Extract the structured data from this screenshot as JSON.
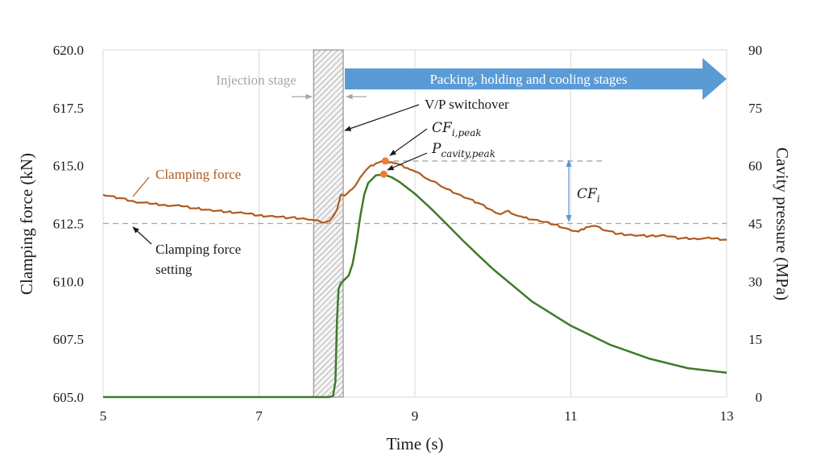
{
  "chart_data": {
    "type": "line",
    "title": "",
    "xlabel": "Time (s)",
    "ylabel_left": "Clamping force (kN)",
    "ylabel_right": "Cavity pressure (MPa)",
    "xlim": [
      5,
      13
    ],
    "ylim_left": [
      605.0,
      620.0
    ],
    "ylim_right": [
      0,
      90
    ],
    "x_ticks": [
      "5",
      "7",
      "9",
      "11",
      "13"
    ],
    "x_tick_values": [
      5,
      7,
      9,
      11,
      13
    ],
    "y_left_ticks": [
      "605.0",
      "607.5",
      "610.0",
      "612.5",
      "615.0",
      "617.5",
      "620.0"
    ],
    "y_left_tick_values": [
      605.0,
      607.5,
      610.0,
      612.5,
      615.0,
      617.5,
      620.0
    ],
    "y_right_ticks": [
      "0",
      "15",
      "30",
      "45",
      "60",
      "75",
      "90"
    ],
    "y_right_tick_values": [
      0,
      15,
      30,
      45,
      60,
      75,
      90
    ],
    "grid": "vertical",
    "series": [
      {
        "name": "Clamping force",
        "axis": "left",
        "color": "#b05a1e",
        "x": [
          5.0,
          5.2,
          5.4,
          5.6,
          5.8,
          6.0,
          6.2,
          6.4,
          6.6,
          6.8,
          7.0,
          7.2,
          7.4,
          7.6,
          7.7,
          7.8,
          7.9,
          7.95,
          8.0,
          8.05,
          8.1,
          8.2,
          8.3,
          8.4,
          8.5,
          8.6,
          8.7,
          8.8,
          8.9,
          9.0,
          9.1,
          9.2,
          9.3,
          9.4,
          9.6,
          9.8,
          10.0,
          10.1,
          10.2,
          10.3,
          10.4,
          10.6,
          10.8,
          11.0,
          11.1,
          11.2,
          11.3,
          11.4,
          11.6,
          11.8,
          12.0,
          12.2,
          12.4,
          12.6,
          12.8,
          13.0
        ],
        "y": [
          613.75,
          613.6,
          613.45,
          613.35,
          613.3,
          613.25,
          613.15,
          613.05,
          613.0,
          612.95,
          612.85,
          612.8,
          612.75,
          612.7,
          612.65,
          612.55,
          612.6,
          612.8,
          613.1,
          613.75,
          613.7,
          614.0,
          614.5,
          614.9,
          615.1,
          615.2,
          615.15,
          615.05,
          614.9,
          614.75,
          614.55,
          614.35,
          614.2,
          614.0,
          613.7,
          613.4,
          613.05,
          612.9,
          613.05,
          612.85,
          612.75,
          612.6,
          612.45,
          612.2,
          612.15,
          612.35,
          612.4,
          612.25,
          612.05,
          612.0,
          611.95,
          612.0,
          611.85,
          611.85,
          611.85,
          611.8
        ]
      },
      {
        "name": "Cavity pressure",
        "axis": "right",
        "color": "#3f7a2a",
        "x": [
          5.0,
          7.9,
          7.95,
          7.98,
          8.0,
          8.02,
          8.05,
          8.1,
          8.15,
          8.2,
          8.25,
          8.3,
          8.35,
          8.4,
          8.5,
          8.6,
          8.7,
          8.8,
          9.0,
          9.2,
          9.4,
          9.6,
          9.8,
          10.0,
          10.5,
          11.0,
          11.5,
          12.0,
          12.5,
          13.0
        ],
        "y": [
          0,
          0,
          0.3,
          4.0,
          20.0,
          28.0,
          29.5,
          30.5,
          31.5,
          34.5,
          40.0,
          47.0,
          52.5,
          55.5,
          57.5,
          57.7,
          57.0,
          55.8,
          52.7,
          49.0,
          45.0,
          40.9,
          37.0,
          33.2,
          24.8,
          18.5,
          13.6,
          10.0,
          7.5,
          6.3
        ]
      }
    ],
    "reference_lines": [
      {
        "axis": "left",
        "y": 612.5,
        "style": "dashed",
        "color": "#a6a6a6",
        "label": "Clamping force setting"
      },
      {
        "axis": "left",
        "y": 615.2,
        "x_from": 8.6,
        "x_to": 11.4,
        "style": "dashed",
        "color": "#a6a6a6"
      }
    ],
    "markers": [
      {
        "series": "Clamping force",
        "x": 8.62,
        "y": 615.2,
        "color": "#ed7d31"
      },
      {
        "series": "Cavity pressure",
        "x": 8.6,
        "y": 57.8,
        "color": "#ed7d31"
      }
    ],
    "regions": [
      {
        "x_from": 7.7,
        "x_to": 8.08,
        "style": "hatched"
      }
    ],
    "annotations": {
      "injection_stage": "Injection stage",
      "packing_stage": "Packing, holding and cooling stages",
      "vp_switchover": "V/P switchover",
      "clamping_force": "Clamping force",
      "setting_line1": "Clamping force",
      "setting_line2": "setting",
      "cf_peak_main": "CF",
      "cf_peak_sub": "i,peak",
      "p_peak_main": "P",
      "p_peak_sub": "cavity,peak",
      "cfi_main": "CF",
      "cfi_sub": "i"
    },
    "colors": {
      "clamping": "#b05a1e",
      "cavity": "#3f7a2a",
      "marker": "#ed7d31",
      "arrow": "#5b9bd5",
      "dim_arrow": "#5b9bd5",
      "gray": "#a6a6a6"
    }
  }
}
